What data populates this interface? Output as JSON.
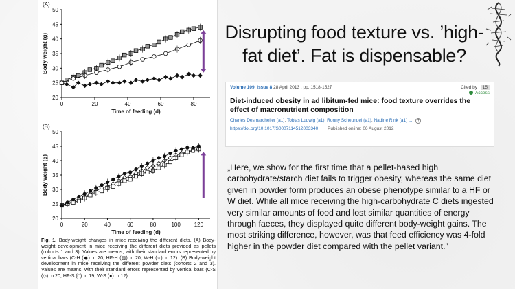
{
  "slide": {
    "title": "Disrupting food texture vs. ’high-fat diet’. Fat is dispensable?",
    "quote": "„Here, we show for the first time that a pellet-based high carbohydrate/starch diet fails to trigger obesity, whereas the same diet given in powder form produces an obese phenotype similar to a HF or W diet. While all mice receiving the high-carbohydrate C diets ingested very similar amounts of food and lost similar quantities of energy through faeces, they displayed quite different body-weight gains. The most striking difference, however, was that feed efficiency was 4-fold higher in the powder diet compared with the pellet variant.”",
    "corner_icon": "dna-helix-icon"
  },
  "citation": {
    "volume": "Volume 109, Issue 8",
    "date_pages": "28 April 2013 , pp. 1518-1527",
    "cited_by_label": "Cited by",
    "cited_by_count": "15",
    "access": "Access",
    "title": "Diet-induced obesity in ad libitum-fed mice: food texture overrides the effect of macronutrient composition",
    "authors": [
      "Charles Desmarchelier (a1)",
      "Tobias Ludwig (a1)",
      "Ronny Scheundel (a1)",
      "Nadine Rink (a1)"
    ],
    "authors_more": "...",
    "doi": "https://doi.org/10.1017/S0007114512003340",
    "published": "Published online: 06 August 2012"
  },
  "figure": {
    "caption_label": "Fig. 1.",
    "caption_text": "Body-weight changes in mice receiving the different diets. (A) Body-weight development in mice receiving the different diets provided as pellets (cohorts 1 and 3). Values are means, with their standard errors represented by vertical bars (C-H (◆): n 20; HF-H (▨): n 20; W-H (○): n 12). (B) Body-weight development in mice receiving the different powder diets (cohorts 2 and 3). Values are means, with their standard errors represented by vertical bars (C-S (◇): n 20; HF-S (□): n 19; W-S (●): n 12).",
    "arrow_color": "#7b3f98"
  },
  "chart_data": [
    {
      "type": "line",
      "panel_label": "(A)",
      "xlabel": "Time of feeding (d)",
      "ylabel": "Body weight (g)",
      "xlim": [
        0,
        90
      ],
      "ylim": [
        20,
        50
      ],
      "xticks": [
        0,
        20,
        40,
        60,
        80
      ],
      "yticks": [
        20,
        25,
        30,
        35,
        40,
        45,
        50
      ],
      "series": [
        {
          "name": "C-H",
          "marker": "filled-diamond",
          "x": [
            0,
            3,
            7,
            10,
            14,
            17,
            21,
            24,
            28,
            31,
            35,
            38,
            42,
            45,
            49,
            52,
            56,
            59,
            63,
            66,
            70,
            73,
            77,
            80,
            84
          ],
          "y": [
            25,
            24.5,
            23.5,
            25,
            24,
            24.5,
            25,
            24.5,
            25.5,
            25,
            25,
            25.5,
            25,
            26,
            25.5,
            26,
            26.5,
            26,
            27,
            26.5,
            27.5,
            27,
            28,
            27.5,
            27.5
          ]
        },
        {
          "name": "HF-H",
          "marker": "hatched-square",
          "x": [
            0,
            3,
            7,
            10,
            14,
            17,
            21,
            24,
            28,
            31,
            35,
            38,
            42,
            45,
            49,
            52,
            56,
            59,
            63,
            66,
            70,
            73,
            77,
            80,
            84
          ],
          "y": [
            25,
            26,
            27,
            27.5,
            28.5,
            29.5,
            30,
            31,
            32,
            32.5,
            33.5,
            34.5,
            35,
            36,
            36.5,
            37.5,
            38,
            39,
            40,
            40.5,
            41.5,
            42.5,
            43,
            43.5,
            44
          ]
        },
        {
          "name": "W-H",
          "marker": "open-circle",
          "x": [
            0,
            7,
            14,
            21,
            28,
            35,
            42,
            49,
            56,
            63,
            70,
            77,
            84
          ],
          "y": [
            25,
            26.5,
            27.5,
            28.5,
            29.5,
            30.5,
            32,
            33,
            34,
            35,
            36.5,
            38,
            39.5
          ]
        }
      ]
    },
    {
      "type": "line",
      "panel_label": "(B)",
      "xlabel": "Time of feeding (d)",
      "ylabel": "Body weight (g)",
      "xlim": [
        0,
        130
      ],
      "ylim": [
        20,
        50
      ],
      "xticks": [
        0,
        20,
        40,
        60,
        80,
        100,
        120
      ],
      "yticks": [
        20,
        25,
        30,
        35,
        40,
        45,
        50
      ],
      "series": [
        {
          "name": "C-S",
          "marker": "open-diamond",
          "x": [
            0,
            5,
            10,
            15,
            20,
            25,
            30,
            35,
            40,
            45,
            50,
            55,
            60,
            65,
            70,
            75,
            80,
            85,
            90,
            95,
            100,
            105,
            110,
            115,
            120
          ],
          "y": [
            24.5,
            25,
            26,
            26.5,
            27.5,
            28.5,
            29.5,
            30.5,
            31,
            32,
            33,
            34,
            34.5,
            35.5,
            36.5,
            37.5,
            38,
            39,
            40,
            41,
            42,
            42.5,
            43,
            43.5,
            44
          ]
        },
        {
          "name": "HF-S",
          "marker": "open-square",
          "x": [
            0,
            5,
            10,
            15,
            20,
            25,
            30,
            35,
            40,
            45,
            50,
            55,
            60,
            65,
            70,
            75,
            80,
            85,
            90,
            95,
            100,
            105,
            110,
            115,
            120
          ],
          "y": [
            24.5,
            25,
            25.5,
            26,
            27,
            28,
            29,
            29.5,
            30.5,
            31,
            32,
            33,
            33.5,
            34.5,
            35.5,
            36,
            36.5,
            37.5,
            38.5,
            39.5,
            41,
            42,
            43,
            43.5,
            44
          ]
        },
        {
          "name": "W-S",
          "marker": "filled-circle",
          "x": [
            0,
            5,
            10,
            15,
            20,
            25,
            30,
            35,
            40,
            45,
            50,
            55,
            60,
            65,
            70,
            75,
            80,
            85,
            90,
            95,
            100,
            105,
            110,
            115,
            120
          ],
          "y": [
            24.5,
            25.5,
            26.5,
            27.5,
            28.5,
            29.5,
            30.5,
            31.5,
            32.5,
            33.5,
            34.5,
            35.5,
            36,
            37,
            38,
            39,
            40,
            41,
            41.5,
            42.5,
            43.5,
            44,
            44.5,
            44.5,
            45
          ]
        }
      ]
    }
  ]
}
